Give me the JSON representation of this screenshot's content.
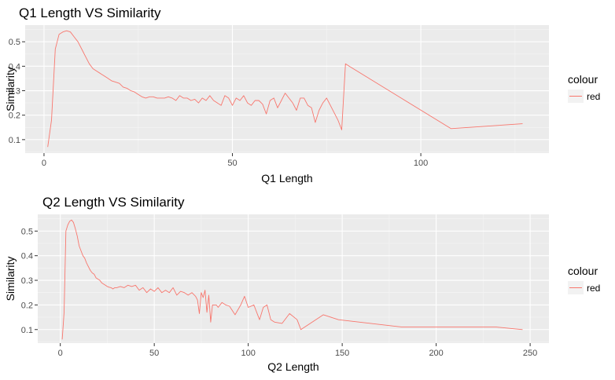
{
  "chart_data": [
    {
      "type": "line",
      "title": "Q1 Length VS Similarity",
      "xlabel": "Q1 Length",
      "ylabel": "Similarity",
      "xlim": [
        -5,
        134
      ],
      "ylim": [
        0.045,
        0.568
      ],
      "xticks": [
        0,
        50,
        100
      ],
      "yticks": [
        0.1,
        0.2,
        0.3,
        0.4,
        0.5
      ],
      "xtick_labels": [
        "0",
        "50",
        "100"
      ],
      "ytick_labels": [
        "0.1",
        "0.2",
        "0.3",
        "0.4",
        "0.5"
      ],
      "grid": true,
      "legend": {
        "title": "colour",
        "placement": "right",
        "entries": [
          "red"
        ]
      },
      "series": [
        {
          "name": "red",
          "color": "#F8766D",
          "x": [
            1,
            2,
            3,
            3.5,
            4,
            5,
            6,
            7,
            8,
            9,
            10,
            11,
            12,
            13,
            14,
            15,
            16,
            17,
            18,
            19,
            20,
            21,
            22,
            23,
            24,
            25,
            26,
            27,
            28,
            29,
            30,
            31,
            32,
            33,
            34,
            35,
            36,
            37,
            38,
            39,
            40,
            41,
            42,
            43,
            44,
            45,
            46,
            47,
            48,
            49,
            50,
            51,
            52,
            53,
            54,
            55,
            56,
            57,
            58,
            59,
            60,
            61,
            62,
            63,
            64,
            65,
            66,
            67,
            68,
            69,
            70,
            71,
            72,
            73,
            74,
            75,
            76,
            77,
            78,
            79,
            80,
            81,
            108,
            127
          ],
          "y": [
            0.07,
            0.18,
            0.47,
            0.5,
            0.53,
            0.54,
            0.545,
            0.54,
            0.52,
            0.5,
            0.47,
            0.44,
            0.41,
            0.39,
            0.38,
            0.37,
            0.36,
            0.35,
            0.34,
            0.335,
            0.33,
            0.315,
            0.31,
            0.3,
            0.295,
            0.285,
            0.275,
            0.27,
            0.275,
            0.275,
            0.27,
            0.27,
            0.27,
            0.275,
            0.27,
            0.26,
            0.28,
            0.27,
            0.27,
            0.26,
            0.265,
            0.25,
            0.27,
            0.26,
            0.28,
            0.26,
            0.25,
            0.24,
            0.28,
            0.27,
            0.24,
            0.27,
            0.26,
            0.28,
            0.25,
            0.24,
            0.26,
            0.26,
            0.245,
            0.205,
            0.26,
            0.27,
            0.23,
            0.26,
            0.29,
            0.27,
            0.25,
            0.22,
            0.27,
            0.27,
            0.24,
            0.23,
            0.17,
            0.22,
            0.25,
            0.27,
            0.24,
            0.21,
            0.18,
            0.14,
            0.41,
            0.4,
            0.145,
            0.165
          ]
        }
      ]
    },
    {
      "type": "line",
      "title": "Q2 Length VS Similarity",
      "xlabel": "Q2 Length",
      "ylabel": "Similarity",
      "xlim": [
        -12,
        260
      ],
      "ylim": [
        0.045,
        0.568
      ],
      "xticks": [
        0,
        50,
        100,
        150,
        200,
        250
      ],
      "yticks": [
        0.1,
        0.2,
        0.3,
        0.4,
        0.5
      ],
      "xtick_labels": [
        "0",
        "50",
        "100",
        "150",
        "200",
        "250"
      ],
      "ytick_labels": [
        "0.1",
        "0.2",
        "0.3",
        "0.4",
        "0.5"
      ],
      "grid": true,
      "legend": {
        "title": "colour",
        "placement": "right",
        "entries": [
          "red"
        ]
      },
      "series": [
        {
          "name": "red",
          "color": "#F8766D",
          "x": [
            1,
            2,
            3,
            4,
            5,
            6,
            7,
            8,
            9,
            10,
            11,
            12,
            13,
            14,
            15,
            16,
            17,
            18,
            19,
            20,
            21,
            22,
            23,
            24,
            25,
            26,
            27,
            28,
            29,
            30,
            32,
            34,
            36,
            38,
            40,
            42,
            44,
            46,
            48,
            50,
            52,
            54,
            56,
            58,
            60,
            62,
            64,
            66,
            68,
            70,
            72,
            73,
            74,
            75,
            76,
            77,
            78,
            79,
            80,
            81,
            82,
            83,
            84,
            86,
            88,
            90,
            93,
            96,
            98,
            100,
            103,
            106,
            108,
            110,
            112,
            114,
            118,
            122,
            126,
            128,
            140,
            148,
            182,
            232,
            246
          ],
          "y": [
            0.06,
            0.17,
            0.5,
            0.525,
            0.54,
            0.545,
            0.535,
            0.51,
            0.48,
            0.44,
            0.42,
            0.4,
            0.39,
            0.37,
            0.355,
            0.34,
            0.33,
            0.325,
            0.31,
            0.305,
            0.3,
            0.29,
            0.285,
            0.28,
            0.275,
            0.272,
            0.27,
            0.265,
            0.27,
            0.27,
            0.275,
            0.27,
            0.28,
            0.275,
            0.28,
            0.26,
            0.27,
            0.25,
            0.265,
            0.255,
            0.27,
            0.25,
            0.26,
            0.25,
            0.27,
            0.24,
            0.255,
            0.25,
            0.24,
            0.25,
            0.235,
            0.22,
            0.165,
            0.25,
            0.23,
            0.26,
            0.17,
            0.24,
            0.13,
            0.2,
            0.2,
            0.2,
            0.19,
            0.21,
            0.2,
            0.195,
            0.16,
            0.2,
            0.235,
            0.19,
            0.2,
            0.14,
            0.19,
            0.2,
            0.14,
            0.13,
            0.125,
            0.165,
            0.14,
            0.1,
            0.16,
            0.14,
            0.11,
            0.11,
            0.1
          ]
        }
      ]
    }
  ]
}
